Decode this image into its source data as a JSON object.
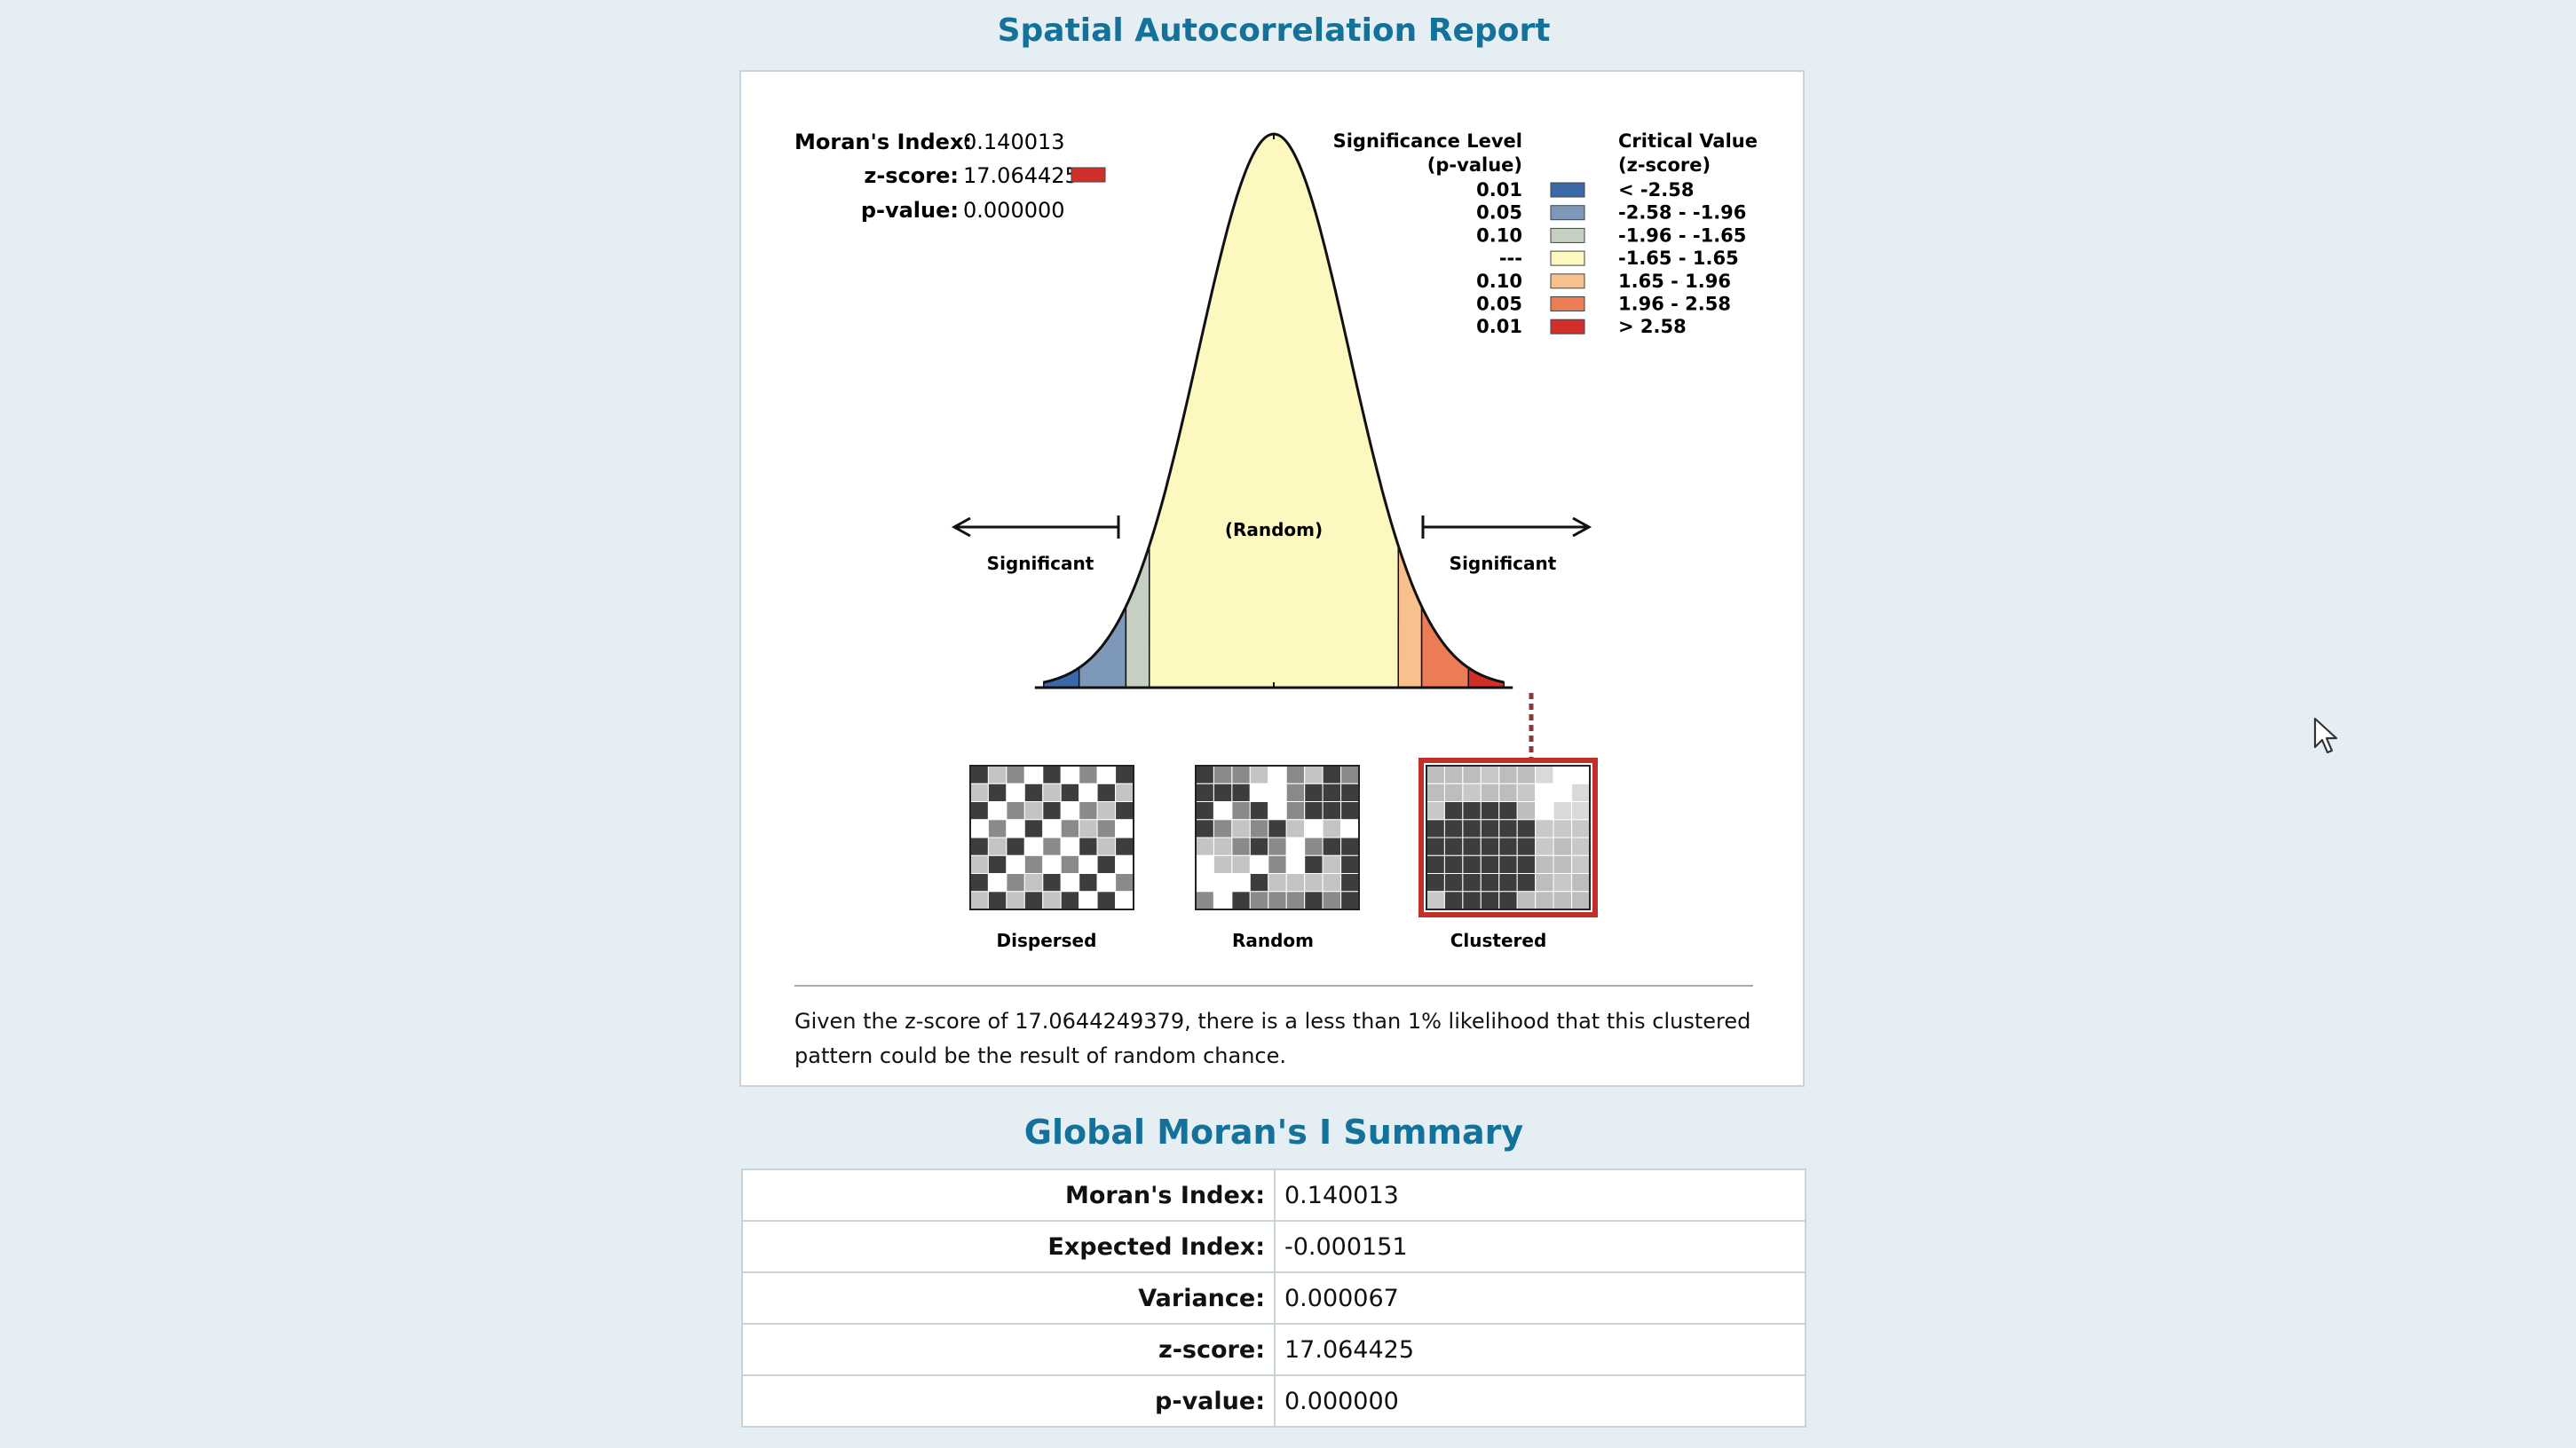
{
  "report_title": "Spatial Autocorrelation Report",
  "stats": [
    {
      "label": "Moran's Index:",
      "value": "0.140013"
    },
    {
      "label": "z-score:",
      "value": "17.064425"
    },
    {
      "label": "p-value:",
      "value": "0.000000"
    }
  ],
  "legend": {
    "col1_header": [
      "Significance Level",
      "(p-value)"
    ],
    "col2_header": [
      "Critical Value",
      "(z-score)"
    ],
    "rows": [
      {
        "p": "0.01",
        "z": "< -2.58",
        "color": "#3a68a8"
      },
      {
        "p": "0.05",
        "z": "-2.58 - -1.96",
        "color": "#7d98b8"
      },
      {
        "p": "0.10",
        "z": "-1.96 - -1.65",
        "color": "#c6d0c2"
      },
      {
        "p": "---",
        "z": "-1.65 - 1.65",
        "color": "#fdf8c0"
      },
      {
        "p": "0.10",
        "z": "1.65 - 1.96",
        "color": "#f8c08c"
      },
      {
        "p": "0.05",
        "z": "1.96 - 2.58",
        "color": "#ec7c56"
      },
      {
        "p": "0.01",
        "z": "> 2.58",
        "color": "#d32f2a"
      }
    ]
  },
  "curve_labels": {
    "random": "(Random)",
    "significant_left": "Significant",
    "significant_right": "Significant"
  },
  "patterns": [
    {
      "label": "Dispersed",
      "selected": false
    },
    {
      "label": "Random",
      "selected": false
    },
    {
      "label": "Clustered",
      "selected": true
    }
  ],
  "interpretation": "Given the z-score of 17.0644249379, there is a less than 1% likelihood that this clustered pattern could be the result of random chance.",
  "summary_title": "Global Moran's I Summary",
  "summary_rows": [
    {
      "label": "Moran's Index:",
      "value": "0.140013"
    },
    {
      "label": "Expected Index:",
      "value": "-0.000151"
    },
    {
      "label": "Variance:",
      "value": "0.000067"
    },
    {
      "label": "z-score:",
      "value": "17.064425"
    },
    {
      "label": "p-value:",
      "value": "0.000000"
    }
  ],
  "colors": {
    "accent": "#13719a",
    "highlight_border": "#c0302a",
    "curve_fill": "#fdf8c0"
  }
}
